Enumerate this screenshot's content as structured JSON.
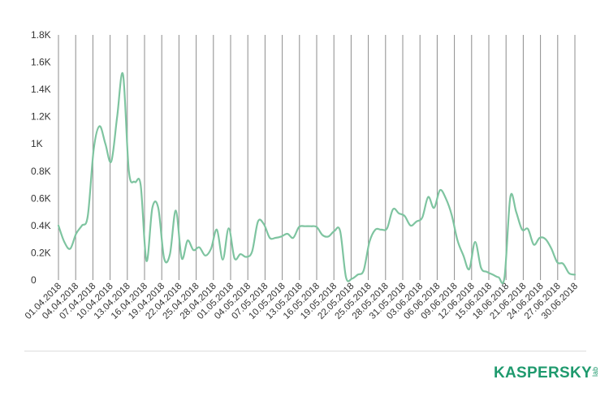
{
  "chart_data": {
    "type": "line",
    "title": "",
    "xlabel": "",
    "ylabel": "",
    "ylim": [
      0,
      1800
    ],
    "yticks": [
      0,
      200,
      400,
      600,
      800,
      1000,
      1200,
      1400,
      1600,
      1800
    ],
    "ytick_labels": [
      "0",
      "0.2K",
      "0.4K",
      "0.6K",
      "0.8K",
      "1K",
      "1.2K",
      "1.4K",
      "1.6K",
      "1.8K"
    ],
    "x_tick_labels": [
      "01.04.2018",
      "04.04.2018",
      "07.04.2018",
      "10.04.2018",
      "13.04.2018",
      "16.04.2018",
      "19.04.2018",
      "22.04.2018",
      "25.04.2018",
      "28.04.2018",
      "01.05.2018",
      "04.05.2018",
      "07.05.2018",
      "10.05.2018",
      "13.05.2018",
      "16.05.2018",
      "19.05.2018",
      "22.05.2018",
      "25.05.2018",
      "28.05.2018",
      "31.05.2018",
      "03.06.2018",
      "06.06.2018",
      "09.06.2018",
      "12.06.2018",
      "15.06.2018",
      "18.06.2018",
      "21.06.2018",
      "24.06.2018",
      "27.06.2018",
      "30.06.2018"
    ],
    "grid": {
      "vertical": true,
      "horizontal": false
    },
    "line_color": "#7ec4a0",
    "series": [
      {
        "name": "",
        "values": [
          400,
          280,
          230,
          340,
          400,
          470,
          960,
          1130,
          1000,
          870,
          1200,
          1510,
          800,
          720,
          700,
          140,
          530,
          530,
          160,
          190,
          510,
          160,
          290,
          220,
          240,
          180,
          230,
          370,
          150,
          380,
          160,
          190,
          170,
          210,
          430,
          410,
          310,
          310,
          320,
          340,
          310,
          390,
          395,
          395,
          390,
          330,
          320,
          360,
          360,
          20,
          10,
          40,
          70,
          280,
          370,
          370,
          380,
          520,
          490,
          470,
          400,
          430,
          460,
          610,
          530,
          660,
          600,
          480,
          290,
          180,
          80,
          280,
          90,
          60,
          40,
          20,
          20,
          610,
          500,
          370,
          375,
          260,
          310,
          300,
          230,
          130,
          120,
          50,
          40
        ]
      }
    ]
  },
  "logo": {
    "main": "KASPERSKY",
    "sub": "lab"
  }
}
